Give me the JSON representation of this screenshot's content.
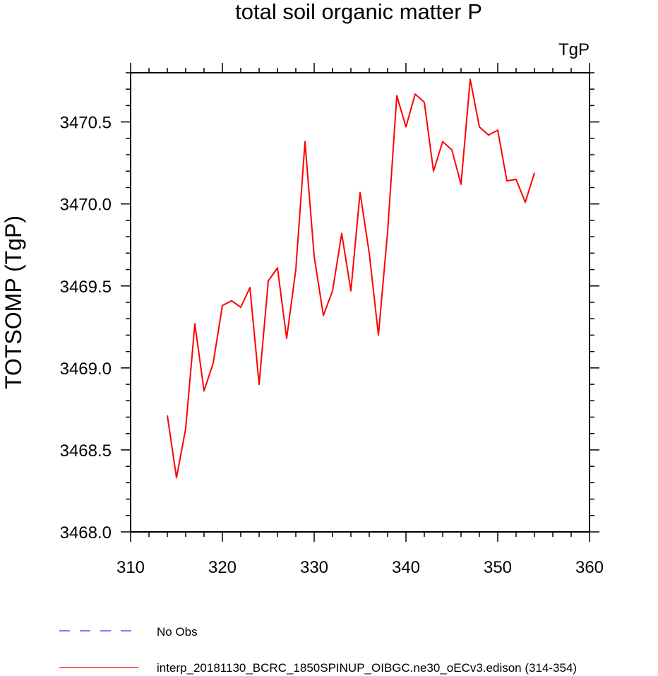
{
  "chart_data": {
    "type": "line",
    "title": "total soil organic matter P",
    "units_label": "TgP",
    "ylabel": "TOTSOMP  (TgP)",
    "xlabel": "",
    "xlim": [
      310,
      360
    ],
    "ylim": [
      3468.0,
      3470.8
    ],
    "x_ticks": [
      310,
      320,
      330,
      340,
      350,
      360
    ],
    "x_tick_labels": [
      "310",
      "320",
      "330",
      "340",
      "350",
      "360"
    ],
    "y_ticks": [
      3468.0,
      3468.5,
      3469.0,
      3469.5,
      3470.0,
      3470.5
    ],
    "y_tick_labels": [
      "3468.0",
      "3468.5",
      "3469.0",
      "3469.5",
      "3470.0",
      "3470.5"
    ],
    "grid": false,
    "legend_position": "bottom",
    "series": [
      {
        "name": "interp_20181130_BCRC_1850SPINUP_OIBGC.ne30_oECv3.edison (314-354)",
        "color": "#ff0000",
        "style": "solid",
        "x": [
          314,
          315,
          316,
          317,
          318,
          319,
          320,
          321,
          322,
          323,
          324,
          325,
          326,
          327,
          328,
          329,
          330,
          331,
          332,
          333,
          334,
          335,
          336,
          337,
          338,
          339,
          340,
          341,
          342,
          343,
          344,
          345,
          346,
          347,
          348,
          349,
          350,
          351,
          352,
          353,
          354
        ],
        "values": [
          3468.71,
          3468.33,
          3468.63,
          3469.27,
          3468.86,
          3469.03,
          3469.38,
          3469.41,
          3469.37,
          3469.49,
          3468.9,
          3469.53,
          3469.61,
          3469.18,
          3469.6,
          3470.38,
          3469.68,
          3469.32,
          3469.47,
          3469.82,
          3469.47,
          3470.07,
          3469.7,
          3469.2,
          3469.83,
          3470.66,
          3470.47,
          3470.67,
          3470.62,
          3470.2,
          3470.38,
          3470.33,
          3470.12,
          3470.76,
          3470.47,
          3470.42,
          3470.45,
          3470.14,
          3470.15,
          3470.01,
          3470.19
        ]
      },
      {
        "name": "No Obs",
        "color": "#3333ff",
        "style": "dashed",
        "x": [],
        "values": []
      }
    ]
  }
}
